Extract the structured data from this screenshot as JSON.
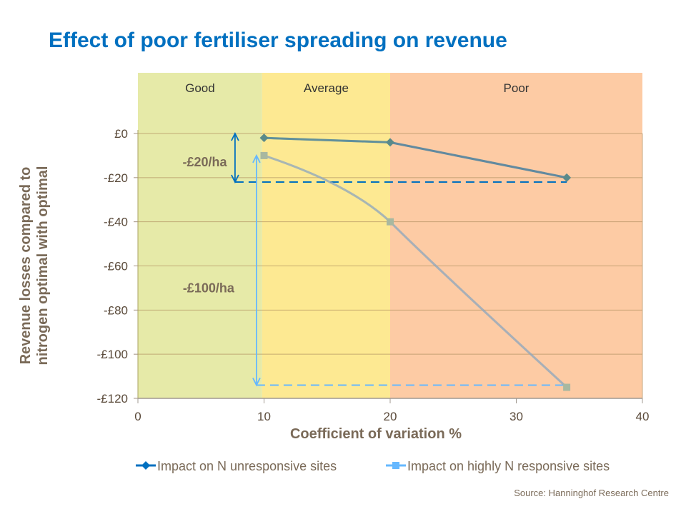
{
  "chart_data": {
    "type": "line",
    "title": "Effect of poor fertiliser spreading on revenue",
    "xlabel": "Coefficient of variation %",
    "ylabel": "Revenue losses compared to nitrogen optimal with optimal",
    "xlim": [
      0,
      40
    ],
    "ylim": [
      -120,
      0
    ],
    "xticks": [
      "0",
      "10",
      "20",
      "30",
      "40"
    ],
    "xtick_values": [
      0,
      10,
      20,
      30,
      40
    ],
    "yticks": [
      "£0",
      "-£20",
      "-£40",
      "-£60",
      "-£80",
      "-£100",
      "-£120"
    ],
    "ytick_values": [
      0,
      -20,
      -40,
      -60,
      -80,
      -100,
      -120
    ],
    "grid": true,
    "bands": [
      {
        "label": "Good",
        "from": 0,
        "to": 9.85,
        "color": "#e6eaa8"
      },
      {
        "label": "Average",
        "from": 9.85,
        "to": 20,
        "color": "#fde992"
      },
      {
        "label": "Poor",
        "from": 20,
        "to": 40,
        "color": "#fdcba4"
      }
    ],
    "series": [
      {
        "name": "Impact on N unresponsive sites",
        "marker": "diamond",
        "color": "#0070c0",
        "x": [
          10,
          20,
          34
        ],
        "y": [
          -2,
          -4,
          -20
        ]
      },
      {
        "name": "Impact on highly N responsive sites",
        "marker": "square",
        "color": "#66b8ff",
        "x": [
          10,
          20,
          34
        ],
        "y": [
          -10,
          -40,
          -115
        ]
      }
    ],
    "annotations": [
      {
        "text": "-£20/ha",
        "arrow_x": 7.7,
        "from": 0,
        "to": -22,
        "dash_y": -22,
        "dash_to_x": 34,
        "color": "#0070c0",
        "label_x": 5.3,
        "label_y": -13
      },
      {
        "text": "-£100/ha",
        "arrow_x": 9.4,
        "from": -10,
        "to": -114,
        "dash_y": -114,
        "dash_to_x": 34,
        "color": "#66b8ff",
        "label_x": 5.6,
        "label_y": -70
      }
    ],
    "legend": "bottom"
  },
  "source": "Source: Hanninghof  Research Centre"
}
